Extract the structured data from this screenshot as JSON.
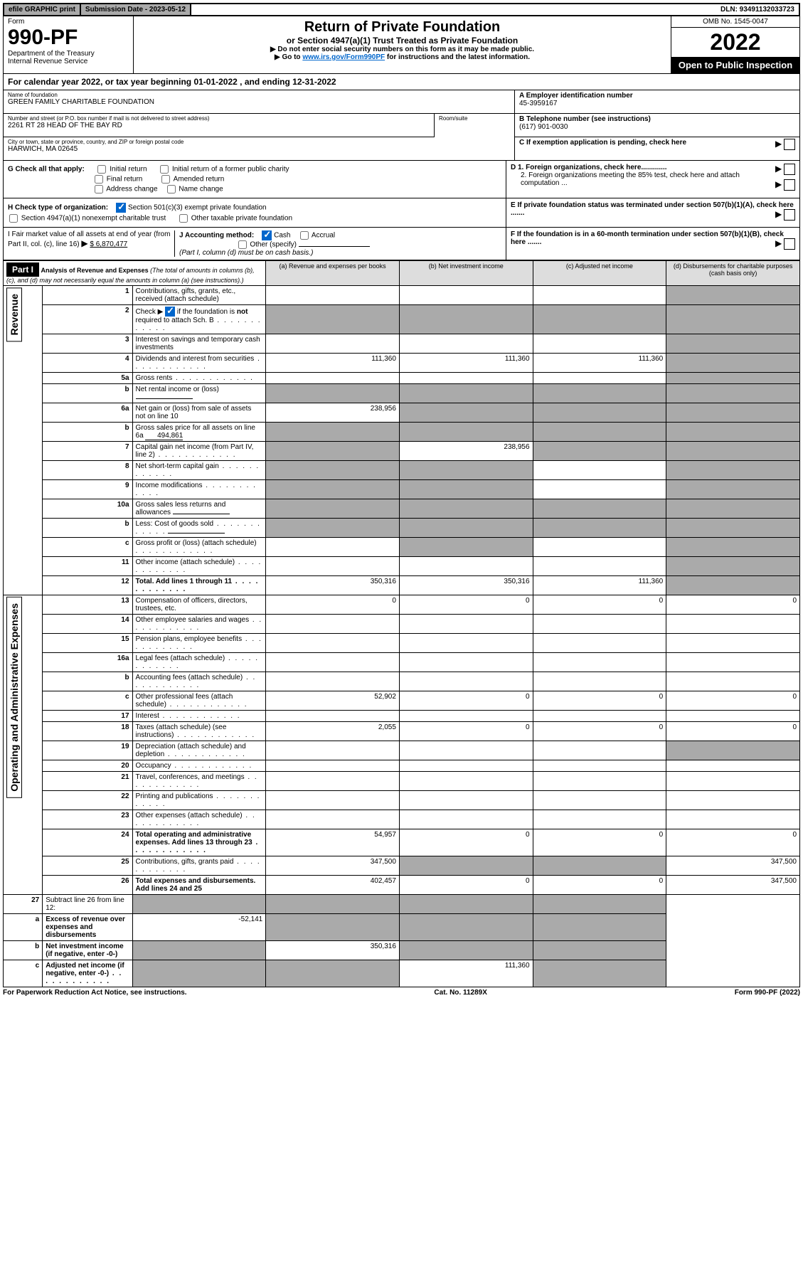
{
  "top": {
    "efile": "efile GRAPHIC print",
    "subdate_label": "Submission Date - 2023-05-12",
    "dln_label": "DLN: 93491132033723"
  },
  "header": {
    "form_label": "Form",
    "form_number": "990-PF",
    "dept": "Department of the Treasury",
    "irs": "Internal Revenue Service",
    "title": "Return of Private Foundation",
    "subtitle": "or Section 4947(a)(1) Trust Treated as Private Foundation",
    "inst1": "▶ Do not enter social security numbers on this form as it may be made public.",
    "inst2_pre": "▶ Go to ",
    "inst2_link": "www.irs.gov/Form990PF",
    "inst2_post": " for instructions and the latest information.",
    "omb": "OMB No. 1545-0047",
    "year": "2022",
    "open": "Open to Public Inspection"
  },
  "calyear": "For calendar year 2022, or tax year beginning 01-01-2022             , and ending 12-31-2022",
  "info": {
    "name_label": "Name of foundation",
    "name": "GREEN FAMILY CHARITABLE FOUNDATION",
    "addr_label": "Number and street (or P.O. box number if mail is not delivered to street address)",
    "addr": "2261 RT 28 HEAD OF THE BAY RD",
    "room_label": "Room/suite",
    "city_label": "City or town, state or province, country, and ZIP or foreign postal code",
    "city": "HARWICH, MA  02645",
    "a_label": "A Employer identification number",
    "a_val": "45-3959167",
    "b_label": "B Telephone number (see instructions)",
    "b_val": "(617) 901-0030",
    "c_label": "C If exemption application is pending, check here",
    "d1": "D 1. Foreign organizations, check here.............",
    "d2": "2. Foreign organizations meeting the 85% test, check here and attach computation ...",
    "e": "E  If private foundation status was terminated under section 507(b)(1)(A), check here .......",
    "f": "F  If the foundation is in a 60-month termination under section 507(b)(1)(B), check here ......."
  },
  "g": {
    "label": "G Check all that apply:",
    "initial": "Initial return",
    "initial_former": "Initial return of a former public charity",
    "final": "Final return",
    "amended": "Amended return",
    "addr_change": "Address change",
    "name_change": "Name change"
  },
  "h": {
    "label": "H Check type of organization:",
    "s501": "Section 501(c)(3) exempt private foundation",
    "s4947": "Section 4947(a)(1) nonexempt charitable trust",
    "other_tax": "Other taxable private foundation"
  },
  "i": {
    "label1": "I Fair market value of all assets at end of year (from Part II, col. (c), line 16)",
    "arrow": "▶",
    "value": "$  6,870,477"
  },
  "j": {
    "label": "J Accounting method:",
    "cash": "Cash",
    "accrual": "Accrual",
    "other": "Other (specify)",
    "note": "(Part I, column (d) must be on cash basis.)"
  },
  "part1": {
    "label": "Part I",
    "title": "Analysis of Revenue and Expenses",
    "title_note": " (The total of amounts in columns (b), (c), and (d) may not necessarily equal the amounts in column (a) (see instructions).)",
    "col_a": "(a)   Revenue and expenses per books",
    "col_b": "(b)   Net investment income",
    "col_c": "(c)   Adjusted net income",
    "col_d": "(d)   Disbursements for charitable purposes (cash basis only)"
  },
  "side": {
    "revenue": "Revenue",
    "expenses": "Operating and Administrative Expenses"
  },
  "rows": [
    {
      "n": "1",
      "desc": "Contributions, gifts, grants, etc., received (attach schedule)",
      "a": "",
      "b": "",
      "c": "",
      "d": "",
      "d_shade": true
    },
    {
      "n": "2",
      "desc": "Check ▶ ☑ if the foundation is not required to attach Sch. B",
      "dotted": true,
      "a": "",
      "b": "",
      "c": "",
      "d": "",
      "b_shade": true,
      "c_shade": true,
      "d_shade": true,
      "a_shade": true
    },
    {
      "n": "3",
      "desc": "Interest on savings and temporary cash investments",
      "a": "",
      "b": "",
      "c": "",
      "d": "",
      "d_shade": true
    },
    {
      "n": "4",
      "desc": "Dividends and interest from securities",
      "dotted": true,
      "a": "111,360",
      "b": "111,360",
      "c": "111,360",
      "d": "",
      "d_shade": true
    },
    {
      "n": "5a",
      "desc": "Gross rents",
      "dotted": true,
      "a": "",
      "b": "",
      "c": "",
      "d": "",
      "d_shade": true
    },
    {
      "n": "b",
      "desc": "Net rental income or (loss)",
      "inline_blank": true,
      "a": "",
      "b": "",
      "c": "",
      "d": "",
      "a_shade": true,
      "b_shade": true,
      "c_shade": true,
      "d_shade": true
    },
    {
      "n": "6a",
      "desc": "Net gain or (loss) from sale of assets not on line 10",
      "a": "238,956",
      "b": "",
      "c": "",
      "d": "",
      "b_shade": true,
      "c_shade": true,
      "d_shade": true
    },
    {
      "n": "b",
      "desc": "Gross sales price for all assets on line 6a",
      "inline_val": "494,861",
      "a": "",
      "b": "",
      "c": "",
      "d": "",
      "a_shade": true,
      "b_shade": true,
      "c_shade": true,
      "d_shade": true
    },
    {
      "n": "7",
      "desc": "Capital gain net income (from Part IV, line 2)",
      "dotted": true,
      "a": "",
      "b": "238,956",
      "c": "",
      "d": "",
      "a_shade": true,
      "c_shade": true,
      "d_shade": true
    },
    {
      "n": "8",
      "desc": "Net short-term capital gain",
      "dotted": true,
      "a": "",
      "b": "",
      "c": "",
      "d": "",
      "a_shade": true,
      "b_shade": true,
      "d_shade": true
    },
    {
      "n": "9",
      "desc": "Income modifications",
      "dotted": true,
      "a": "",
      "b": "",
      "c": "",
      "d": "",
      "a_shade": true,
      "b_shade": true,
      "d_shade": true
    },
    {
      "n": "10a",
      "desc": "Gross sales less returns and allowances",
      "inline_blank": true,
      "a": "",
      "b": "",
      "c": "",
      "d": "",
      "a_shade": true,
      "b_shade": true,
      "c_shade": true,
      "d_shade": true
    },
    {
      "n": "b",
      "desc": "Less: Cost of goods sold",
      "dotted": true,
      "inline_blank": true,
      "a": "",
      "b": "",
      "c": "",
      "d": "",
      "a_shade": true,
      "b_shade": true,
      "c_shade": true,
      "d_shade": true
    },
    {
      "n": "c",
      "desc": "Gross profit or (loss) (attach schedule)",
      "dotted": true,
      "a": "",
      "b": "",
      "c": "",
      "d": "",
      "b_shade": true,
      "d_shade": true
    },
    {
      "n": "11",
      "desc": "Other income (attach schedule)",
      "dotted": true,
      "a": "",
      "b": "",
      "c": "",
      "d": "",
      "d_shade": true
    },
    {
      "n": "12",
      "desc": "Total. Add lines 1 through 11",
      "bold": true,
      "dotted": true,
      "a": "350,316",
      "b": "350,316",
      "c": "111,360",
      "d": "",
      "d_shade": true
    }
  ],
  "exp_rows": [
    {
      "n": "13",
      "desc": "Compensation of officers, directors, trustees, etc.",
      "a": "0",
      "b": "0",
      "c": "0",
      "d": "0"
    },
    {
      "n": "14",
      "desc": "Other employee salaries and wages",
      "dotted": true,
      "a": "",
      "b": "",
      "c": "",
      "d": ""
    },
    {
      "n": "15",
      "desc": "Pension plans, employee benefits",
      "dotted": true,
      "a": "",
      "b": "",
      "c": "",
      "d": ""
    },
    {
      "n": "16a",
      "desc": "Legal fees (attach schedule)",
      "dotted": true,
      "a": "",
      "b": "",
      "c": "",
      "d": ""
    },
    {
      "n": "b",
      "desc": "Accounting fees (attach schedule)",
      "dotted": true,
      "a": "",
      "b": "",
      "c": "",
      "d": ""
    },
    {
      "n": "c",
      "desc": "Other professional fees (attach schedule)",
      "dotted": true,
      "a": "52,902",
      "b": "0",
      "c": "0",
      "d": "0"
    },
    {
      "n": "17",
      "desc": "Interest",
      "dotted": true,
      "a": "",
      "b": "",
      "c": "",
      "d": ""
    },
    {
      "n": "18",
      "desc": "Taxes (attach schedule) (see instructions)",
      "dotted": true,
      "a": "2,055",
      "b": "0",
      "c": "0",
      "d": "0"
    },
    {
      "n": "19",
      "desc": "Depreciation (attach schedule) and depletion",
      "dotted": true,
      "a": "",
      "b": "",
      "c": "",
      "d": "",
      "d_shade": true
    },
    {
      "n": "20",
      "desc": "Occupancy",
      "dotted": true,
      "a": "",
      "b": "",
      "c": "",
      "d": ""
    },
    {
      "n": "21",
      "desc": "Travel, conferences, and meetings",
      "dotted": true,
      "a": "",
      "b": "",
      "c": "",
      "d": ""
    },
    {
      "n": "22",
      "desc": "Printing and publications",
      "dotted": true,
      "a": "",
      "b": "",
      "c": "",
      "d": ""
    },
    {
      "n": "23",
      "desc": "Other expenses (attach schedule)",
      "dotted": true,
      "a": "",
      "b": "",
      "c": "",
      "d": ""
    },
    {
      "n": "24",
      "desc": "Total operating and administrative expenses. Add lines 13 through 23",
      "bold": true,
      "dotted": true,
      "a": "54,957",
      "b": "0",
      "c": "0",
      "d": "0"
    },
    {
      "n": "25",
      "desc": "Contributions, gifts, grants paid",
      "dotted": true,
      "a": "347,500",
      "b": "",
      "c": "",
      "d": "347,500",
      "b_shade": true,
      "c_shade": true
    },
    {
      "n": "26",
      "desc": "Total expenses and disbursements. Add lines 24 and 25",
      "bold": true,
      "a": "402,457",
      "b": "0",
      "c": "0",
      "d": "347,500"
    }
  ],
  "net_rows": [
    {
      "n": "27",
      "desc": "Subtract line 26 from line 12:",
      "a": "",
      "b": "",
      "c": "",
      "d": "",
      "a_shade": true,
      "b_shade": true,
      "c_shade": true,
      "d_shade": true
    },
    {
      "n": "a",
      "desc": "Excess of revenue over expenses and disbursements",
      "bold": true,
      "a": "-52,141",
      "b": "",
      "c": "",
      "d": "",
      "b_shade": true,
      "c_shade": true,
      "d_shade": true
    },
    {
      "n": "b",
      "desc": "Net investment income (if negative, enter -0-)",
      "bold": true,
      "a": "",
      "b": "350,316",
      "c": "",
      "d": "",
      "a_shade": true,
      "c_shade": true,
      "d_shade": true
    },
    {
      "n": "c",
      "desc": "Adjusted net income (if negative, enter -0-)",
      "bold": true,
      "dotted": true,
      "a": "",
      "b": "",
      "c": "111,360",
      "d": "",
      "a_shade": true,
      "b_shade": true,
      "d_shade": true
    }
  ],
  "footer": {
    "left": "For Paperwork Reduction Act Notice, see instructions.",
    "mid": "Cat. No. 11289X",
    "right": "Form 990-PF (2022)"
  }
}
